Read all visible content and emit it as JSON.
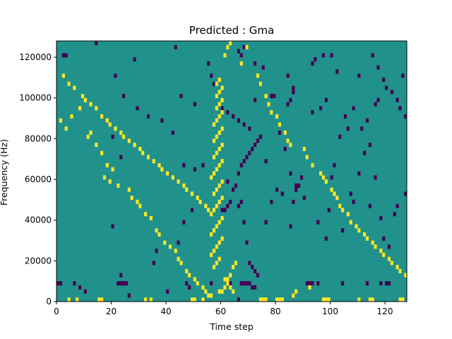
{
  "chart_data": {
    "type": "heatmap",
    "title": "Predicted : Gma",
    "xlabel": "Time step",
    "ylabel": "Frequency (Hz)",
    "xlim": [
      0,
      128
    ],
    "ylim": [
      0,
      128000
    ],
    "xticks": [
      0,
      20,
      40,
      60,
      80,
      100,
      120
    ],
    "yticks": [
      0,
      20000,
      40000,
      60000,
      80000,
      100000,
      120000
    ],
    "n_time_steps": 128,
    "n_freq_bins": 64,
    "grid": false,
    "colors": {
      "background": "#21918c",
      "low": "#440154",
      "high": "#fde725"
    },
    "low_cells": [
      [
        0,
        4
      ],
      [
        1,
        4
      ],
      [
        6,
        4
      ],
      [
        8,
        3
      ],
      [
        10,
        2
      ],
      [
        22,
        4
      ],
      [
        23,
        4
      ],
      [
        24,
        4
      ],
      [
        25,
        4
      ],
      [
        26,
        1
      ],
      [
        40,
        2
      ],
      [
        47,
        4
      ],
      [
        48,
        3
      ],
      [
        56,
        4
      ],
      [
        62,
        4
      ],
      [
        63,
        4
      ],
      [
        66,
        0
      ],
      [
        67,
        4
      ],
      [
        68,
        4
      ],
      [
        69,
        4
      ],
      [
        70,
        4
      ],
      [
        71,
        3
      ],
      [
        72,
        3
      ],
      [
        91,
        4
      ],
      [
        92,
        4
      ],
      [
        93,
        4
      ],
      [
        95,
        4
      ],
      [
        104,
        4
      ],
      [
        113,
        4
      ],
      [
        118,
        4
      ],
      [
        120,
        4
      ],
      [
        121,
        4
      ],
      [
        20,
        18
      ],
      [
        23,
        6
      ],
      [
        35,
        9
      ],
      [
        36,
        12
      ],
      [
        44,
        14
      ],
      [
        46,
        19
      ],
      [
        49,
        22
      ],
      [
        60,
        22
      ],
      [
        61,
        22
      ],
      [
        62,
        23
      ],
      [
        63,
        24
      ],
      [
        66,
        23
      ],
      [
        67,
        24
      ],
      [
        68,
        19
      ],
      [
        69,
        14
      ],
      [
        70,
        9
      ],
      [
        71,
        8
      ],
      [
        72,
        7
      ],
      [
        73,
        6
      ],
      [
        76,
        19
      ],
      [
        78,
        24
      ],
      [
        80,
        27
      ],
      [
        82,
        26
      ],
      [
        85,
        18
      ],
      [
        86,
        24
      ],
      [
        87,
        27
      ],
      [
        88,
        28
      ],
      [
        90,
        25
      ],
      [
        95,
        19
      ],
      [
        98,
        15
      ],
      [
        104,
        17
      ],
      [
        107,
        26
      ],
      [
        108,
        24
      ],
      [
        114,
        23
      ],
      [
        116,
        30
      ],
      [
        118,
        20
      ],
      [
        119,
        15
      ],
      [
        121,
        13
      ],
      [
        123,
        21
      ],
      [
        124,
        23
      ],
      [
        127,
        26
      ],
      [
        2,
        60
      ],
      [
        3,
        60
      ],
      [
        14,
        63
      ],
      [
        28,
        59
      ],
      [
        43,
        62
      ],
      [
        55,
        58
      ],
      [
        56,
        55
      ],
      [
        57,
        53
      ],
      [
        66,
        61
      ],
      [
        67,
        60
      ],
      [
        68,
        62
      ],
      [
        72,
        58
      ],
      [
        75,
        57
      ],
      [
        84,
        55
      ],
      [
        86,
        52
      ],
      [
        93,
        58
      ],
      [
        94,
        59
      ],
      [
        97,
        60
      ],
      [
        100,
        60
      ],
      [
        102,
        56
      ],
      [
        110,
        55
      ],
      [
        115,
        60
      ],
      [
        117,
        57
      ],
      [
        119,
        54
      ],
      [
        120,
        52
      ],
      [
        122,
        51
      ],
      [
        124,
        49
      ],
      [
        125,
        47
      ],
      [
        127,
        45
      ],
      [
        20,
        40
      ],
      [
        23,
        35
      ],
      [
        46,
        33
      ],
      [
        50,
        32
      ],
      [
        53,
        33
      ],
      [
        62,
        29
      ],
      [
        64,
        27
      ],
      [
        65,
        28
      ],
      [
        66,
        31
      ],
      [
        67,
        33
      ],
      [
        68,
        34
      ],
      [
        69,
        35
      ],
      [
        70,
        36
      ],
      [
        71,
        37
      ],
      [
        72,
        38
      ],
      [
        73,
        39
      ],
      [
        74,
        40
      ],
      [
        76,
        34
      ],
      [
        81,
        41
      ],
      [
        83,
        37
      ],
      [
        85,
        31
      ],
      [
        87,
        28
      ],
      [
        89,
        30
      ],
      [
        99,
        22
      ],
      [
        100,
        30
      ],
      [
        101,
        33
      ],
      [
        103,
        40
      ],
      [
        106,
        42
      ],
      [
        110,
        31
      ],
      [
        112,
        36
      ],
      [
        114,
        38
      ],
      [
        21,
        55
      ],
      [
        24,
        50
      ],
      [
        29,
        47
      ],
      [
        33,
        45
      ],
      [
        38,
        44
      ],
      [
        42,
        41
      ],
      [
        45,
        50
      ],
      [
        50,
        48
      ],
      [
        60,
        47
      ],
      [
        62,
        46
      ],
      [
        64,
        45
      ],
      [
        66,
        44
      ],
      [
        68,
        43
      ],
      [
        70,
        42
      ],
      [
        72,
        49
      ],
      [
        78,
        50
      ],
      [
        79,
        50
      ],
      [
        84,
        48
      ],
      [
        85,
        49
      ],
      [
        86,
        51
      ],
      [
        93,
        46
      ],
      [
        96,
        47
      ],
      [
        98,
        49
      ],
      [
        105,
        45
      ],
      [
        108,
        47
      ],
      [
        111,
        42
      ],
      [
        113,
        44
      ],
      [
        116,
        48
      ],
      [
        117,
        49
      ],
      [
        126,
        55
      ]
    ],
    "high_cells": [
      [
        4,
        0
      ],
      [
        7,
        0
      ],
      [
        15,
        0
      ],
      [
        16,
        0
      ],
      [
        32,
        0
      ],
      [
        34,
        0
      ],
      [
        49,
        0
      ],
      [
        50,
        0
      ],
      [
        53,
        0
      ],
      [
        56,
        1
      ],
      [
        59,
        2
      ],
      [
        60,
        2
      ],
      [
        61,
        3
      ],
      [
        62,
        5
      ],
      [
        63,
        6
      ],
      [
        64,
        8
      ],
      [
        65,
        9
      ],
      [
        74,
        0
      ],
      [
        75,
        0
      ],
      [
        76,
        0
      ],
      [
        80,
        0
      ],
      [
        81,
        0
      ],
      [
        82,
        0
      ],
      [
        86,
        1
      ],
      [
        87,
        2
      ],
      [
        92,
        3
      ],
      [
        97,
        0
      ],
      [
        98,
        0
      ],
      [
        99,
        0
      ],
      [
        110,
        0
      ],
      [
        114,
        0
      ],
      [
        115,
        0
      ],
      [
        125,
        0
      ],
      [
        126,
        0
      ],
      [
        57,
        8
      ],
      [
        58,
        9
      ],
      [
        59,
        10
      ],
      [
        56,
        11
      ],
      [
        57,
        12
      ],
      [
        58,
        13
      ],
      [
        59,
        14
      ],
      [
        60,
        15
      ],
      [
        56,
        16
      ],
      [
        57,
        17
      ],
      [
        58,
        18
      ],
      [
        59,
        19
      ],
      [
        60,
        20
      ],
      [
        56,
        21
      ],
      [
        57,
        22
      ],
      [
        58,
        23
      ],
      [
        59,
        24
      ],
      [
        60,
        25
      ],
      [
        57,
        26
      ],
      [
        58,
        27
      ],
      [
        59,
        28
      ],
      [
        60,
        29
      ],
      [
        56,
        30
      ],
      [
        57,
        31
      ],
      [
        58,
        32
      ],
      [
        59,
        33
      ],
      [
        60,
        34
      ],
      [
        57,
        35
      ],
      [
        58,
        36
      ],
      [
        59,
        37
      ],
      [
        60,
        38
      ],
      [
        57,
        39
      ],
      [
        58,
        40
      ],
      [
        59,
        41
      ],
      [
        60,
        42
      ],
      [
        57,
        43
      ],
      [
        58,
        44
      ],
      [
        59,
        45
      ],
      [
        60,
        46
      ],
      [
        58,
        47
      ],
      [
        59,
        48
      ],
      [
        60,
        49
      ],
      [
        58,
        50
      ],
      [
        59,
        51
      ],
      [
        60,
        52
      ],
      [
        58,
        53
      ],
      [
        59,
        54
      ],
      [
        61,
        5
      ],
      [
        62,
        4
      ],
      [
        63,
        3
      ],
      [
        64,
        2
      ],
      [
        61,
        60
      ],
      [
        62,
        62
      ],
      [
        63,
        63
      ],
      [
        67,
        58
      ],
      [
        69,
        62
      ],
      [
        73,
        55
      ],
      [
        74,
        53
      ],
      [
        76,
        50
      ],
      [
        77,
        48
      ],
      [
        78,
        46
      ],
      [
        80,
        45
      ],
      [
        81,
        43
      ],
      [
        83,
        41
      ],
      [
        84,
        39
      ],
      [
        85,
        38
      ],
      [
        90,
        37
      ],
      [
        91,
        35
      ],
      [
        93,
        33
      ],
      [
        96,
        31
      ],
      [
        97,
        30
      ],
      [
        98,
        29
      ],
      [
        100,
        27
      ],
      [
        101,
        26
      ],
      [
        102,
        25
      ],
      [
        103,
        23
      ],
      [
        104,
        22
      ],
      [
        106,
        21
      ],
      [
        107,
        19
      ],
      [
        109,
        18
      ],
      [
        110,
        17
      ],
      [
        112,
        16
      ],
      [
        113,
        15
      ],
      [
        115,
        14
      ],
      [
        116,
        13
      ],
      [
        118,
        12
      ],
      [
        119,
        11
      ],
      [
        121,
        10
      ],
      [
        122,
        9
      ],
      [
        124,
        8
      ],
      [
        125,
        7
      ],
      [
        127,
        6
      ],
      [
        1,
        44
      ],
      [
        3,
        42
      ],
      [
        5,
        45
      ],
      [
        8,
        47
      ],
      [
        11,
        40
      ],
      [
        12,
        41
      ],
      [
        14,
        38
      ],
      [
        16,
        36
      ],
      [
        17,
        30
      ],
      [
        18,
        33
      ],
      [
        19,
        29
      ],
      [
        20,
        32
      ],
      [
        22,
        28
      ],
      [
        26,
        27
      ],
      [
        27,
        25
      ],
      [
        29,
        24
      ],
      [
        30,
        23
      ],
      [
        32,
        21
      ],
      [
        34,
        20
      ],
      [
        36,
        17
      ],
      [
        37,
        16
      ],
      [
        39,
        14
      ],
      [
        41,
        13
      ],
      [
        43,
        12
      ],
      [
        44,
        10
      ],
      [
        45,
        9
      ],
      [
        47,
        7
      ],
      [
        48,
        6
      ],
      [
        50,
        5
      ],
      [
        51,
        4
      ],
      [
        53,
        3
      ],
      [
        54,
        2
      ],
      [
        55,
        1
      ],
      [
        2,
        55
      ],
      [
        4,
        53
      ],
      [
        6,
        52
      ],
      [
        9,
        50
      ],
      [
        10,
        49
      ],
      [
        12,
        48
      ],
      [
        14,
        47
      ],
      [
        16,
        45
      ],
      [
        18,
        44
      ],
      [
        19,
        43
      ],
      [
        21,
        42
      ],
      [
        23,
        41
      ],
      [
        24,
        40
      ],
      [
        26,
        39
      ],
      [
        28,
        38
      ],
      [
        30,
        37
      ],
      [
        31,
        36
      ],
      [
        33,
        35
      ],
      [
        35,
        34
      ],
      [
        37,
        33
      ],
      [
        38,
        32
      ],
      [
        40,
        31
      ],
      [
        42,
        30
      ],
      [
        44,
        29
      ],
      [
        46,
        28
      ],
      [
        47,
        27
      ],
      [
        49,
        26
      ],
      [
        51,
        25
      ],
      [
        52,
        24
      ],
      [
        54,
        23
      ],
      [
        55,
        22
      ]
    ]
  }
}
